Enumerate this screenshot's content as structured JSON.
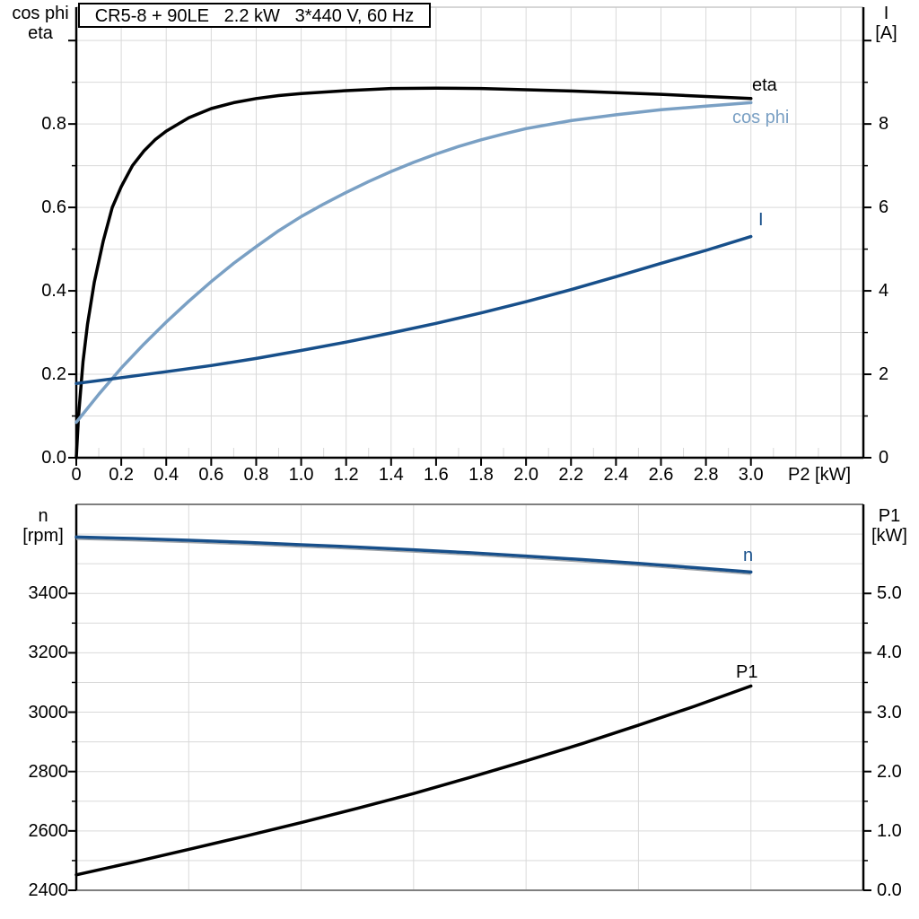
{
  "title": "CR5-8 + 90LE   2.2 kW   3*440 V, 60 Hz",
  "colors": {
    "eta_curve": "#000000",
    "cos_phi_curve": "#7aa0c4",
    "current_curve": "#174f8a",
    "speed_curve": "#174f8a",
    "p1_curve": "#000000",
    "gridline": "#d9d9d9",
    "frame_gray": "#7f7f7f",
    "axis": "#000000"
  },
  "chart_data": [
    {
      "type": "line",
      "title": "CR5-8 + 90LE   2.2 kW   3*440 V, 60 Hz",
      "xlabel": "P2 [kW]",
      "xlim": [
        0,
        3.5
      ],
      "ylabel_left_1": "cos phi",
      "ylabel_left_2": "eta",
      "ylabel_right_1": "I",
      "ylabel_right_2": "[A]",
      "ylim_left": [
        0,
        1.08
      ],
      "ylim_right": [
        0,
        10.8
      ],
      "grid": "on",
      "legend_position": "inline-curve-labels",
      "x_tick_labels": [
        "0",
        "0.2",
        "0.4",
        "0.6",
        "0.8",
        "1.0",
        "1.2",
        "1.4",
        "1.6",
        "1.8",
        "2.0",
        "2.2",
        "2.4",
        "2.6",
        "2.8",
        "3.0"
      ],
      "y_left_tick_labels": [
        "0.0",
        "0.2",
        "0.4",
        "0.6",
        "0.8"
      ],
      "y_right_tick_labels": [
        "0",
        "2",
        "4",
        "6",
        "8"
      ],
      "series": [
        {
          "name": "eta",
          "axis": "left",
          "color": "#000000",
          "points": [
            [
              0,
              0
            ],
            [
              0.01,
              0.1
            ],
            [
              0.03,
              0.23
            ],
            [
              0.05,
              0.32
            ],
            [
              0.08,
              0.42
            ],
            [
              0.12,
              0.52
            ],
            [
              0.16,
              0.6
            ],
            [
              0.2,
              0.65
            ],
            [
              0.25,
              0.7
            ],
            [
              0.3,
              0.735
            ],
            [
              0.35,
              0.762
            ],
            [
              0.4,
              0.783
            ],
            [
              0.5,
              0.815
            ],
            [
              0.6,
              0.837
            ],
            [
              0.7,
              0.851
            ],
            [
              0.8,
              0.861
            ],
            [
              0.9,
              0.868
            ],
            [
              1.0,
              0.873
            ],
            [
              1.2,
              0.88
            ],
            [
              1.4,
              0.885
            ],
            [
              1.6,
              0.886
            ],
            [
              1.8,
              0.885
            ],
            [
              2.0,
              0.882
            ],
            [
              2.2,
              0.879
            ],
            [
              2.4,
              0.875
            ],
            [
              2.6,
              0.871
            ],
            [
              2.8,
              0.866
            ],
            [
              3.0,
              0.861
            ]
          ]
        },
        {
          "name": "cos phi",
          "axis": "left",
          "color": "#7aa0c4",
          "points": [
            [
              0,
              0.085
            ],
            [
              0.1,
              0.152
            ],
            [
              0.2,
              0.215
            ],
            [
              0.3,
              0.272
            ],
            [
              0.4,
              0.325
            ],
            [
              0.5,
              0.375
            ],
            [
              0.6,
              0.422
            ],
            [
              0.7,
              0.466
            ],
            [
              0.8,
              0.506
            ],
            [
              0.9,
              0.544
            ],
            [
              1.0,
              0.578
            ],
            [
              1.1,
              0.608
            ],
            [
              1.2,
              0.636
            ],
            [
              1.3,
              0.662
            ],
            [
              1.4,
              0.686
            ],
            [
              1.5,
              0.708
            ],
            [
              1.6,
              0.728
            ],
            [
              1.7,
              0.746
            ],
            [
              1.8,
              0.762
            ],
            [
              1.9,
              0.776
            ],
            [
              2.0,
              0.789
            ],
            [
              2.2,
              0.808
            ],
            [
              2.4,
              0.822
            ],
            [
              2.6,
              0.834
            ],
            [
              2.8,
              0.843
            ],
            [
              3.0,
              0.851
            ]
          ]
        },
        {
          "name": "I",
          "axis": "right",
          "color": "#174f8a",
          "points": [
            [
              0,
              1.78
            ],
            [
              0.2,
              1.92
            ],
            [
              0.4,
              2.06
            ],
            [
              0.6,
              2.21
            ],
            [
              0.8,
              2.38
            ],
            [
              1.0,
              2.57
            ],
            [
              1.2,
              2.77
            ],
            [
              1.4,
              2.99
            ],
            [
              1.6,
              3.22
            ],
            [
              1.8,
              3.47
            ],
            [
              2.0,
              3.74
            ],
            [
              2.2,
              4.03
            ],
            [
              2.4,
              4.34
            ],
            [
              2.6,
              4.66
            ],
            [
              2.8,
              4.97
            ],
            [
              3.0,
              5.3
            ]
          ]
        }
      ]
    },
    {
      "type": "line",
      "title": "",
      "xlabel": "",
      "xlim": [
        0,
        3.5
      ],
      "ylabel_left_1": "n",
      "ylabel_left_2": "[rpm]",
      "ylabel_right_1": "P1",
      "ylabel_right_2": "[kW]",
      "ylim_left": [
        2400,
        3700
      ],
      "ylim_right": [
        0,
        6.5
      ],
      "grid": "on",
      "legend_position": "inline-curve-labels",
      "x_tick_labels": [],
      "y_left_tick_labels": [
        "2400",
        "2600",
        "2800",
        "3000",
        "3200",
        "3400"
      ],
      "y_right_tick_labels": [
        "0.0",
        "1.0",
        "2.0",
        "3.0",
        "4.0",
        "5.0"
      ],
      "series": [
        {
          "name": "n",
          "axis": "left",
          "color": "#174f8a",
          "points": [
            [
              0,
              3590
            ],
            [
              0.25,
              3585
            ],
            [
              0.5,
              3579
            ],
            [
              0.75,
              3572
            ],
            [
              1.0,
              3564
            ],
            [
              1.25,
              3556
            ],
            [
              1.5,
              3547
            ],
            [
              1.75,
              3537
            ],
            [
              2.0,
              3526
            ],
            [
              2.25,
              3514
            ],
            [
              2.5,
              3501
            ],
            [
              2.75,
              3487
            ],
            [
              3.0,
              3472
            ]
          ]
        },
        {
          "name": "P1",
          "axis": "right",
          "color": "#000000",
          "points": [
            [
              0,
              0.26
            ],
            [
              0.25,
              0.47
            ],
            [
              0.5,
              0.69
            ],
            [
              0.75,
              0.91
            ],
            [
              1.0,
              1.14
            ],
            [
              1.25,
              1.38
            ],
            [
              1.5,
              1.63
            ],
            [
              1.75,
              1.9
            ],
            [
              2.0,
              2.18
            ],
            [
              2.25,
              2.47
            ],
            [
              2.5,
              2.78
            ],
            [
              2.75,
              3.1
            ],
            [
              3.0,
              3.44
            ]
          ]
        }
      ]
    }
  ]
}
